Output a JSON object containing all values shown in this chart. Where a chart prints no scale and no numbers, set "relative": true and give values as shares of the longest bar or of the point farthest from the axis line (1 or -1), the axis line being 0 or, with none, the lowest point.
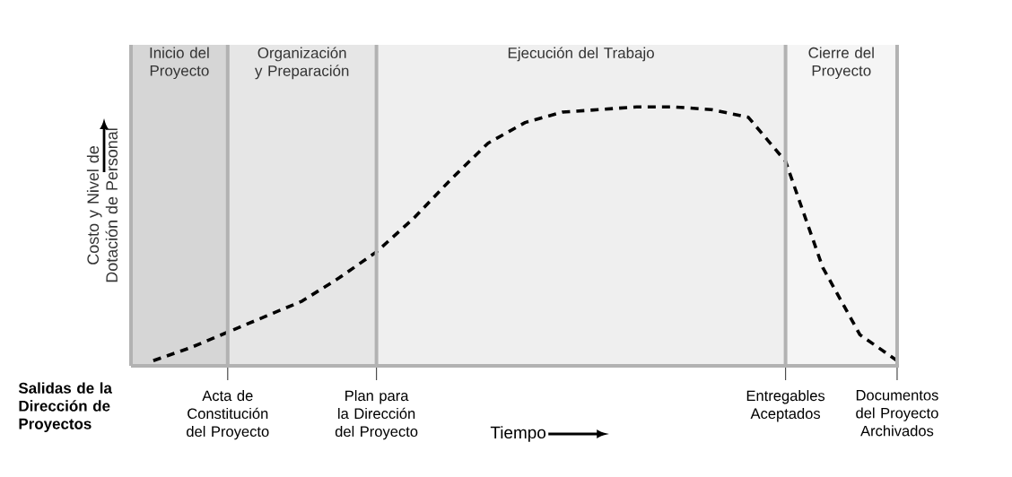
{
  "chart_data": {
    "type": "line",
    "relative": true,
    "xlabel": "Tiempo",
    "ylabel": "Costo y Nivel de Dotación de Personal",
    "annotations": [
      "Salidas de la Dirección de Proyectos",
      "Inicio del Proyecto"
    ],
    "marker": "none",
    "line_style": "dashed",
    "grid": "x",
    "categories": [
      null,
      null,
      "Acta de Constitución del Proyecto",
      null,
      null,
      null,
      "Plan para la Dirección del Proyecto",
      null,
      null,
      null,
      null,
      null,
      null,
      null,
      null,
      null,
      null,
      "Entregables Aceptados",
      null,
      null,
      "Documentos del Proyecto Archivados"
    ],
    "series": [
      {
        "color": "#000000",
        "values": [
          0.02,
          0.07,
          0.13,
          0.19,
          0.25,
          0.34,
          0.44,
          0.57,
          0.72,
          0.86,
          0.94,
          0.98,
          0.99,
          1.0,
          1.0,
          0.99,
          0.96,
          0.79,
          0.38,
          0.12,
          0.02
        ]
      }
    ],
    "bands": [
      {
        "axis": "x",
        "from": "Acta de Constitución del Proyecto",
        "to": "Plan para la Dirección del Proyecto",
        "label": "Organización y Preparación",
        "color": "#e6e6e6"
      },
      {
        "axis": "x",
        "from": "Plan para la Dirección del Proyecto",
        "to": "Entregables Aceptados",
        "label": "Ejecución del Trabajo",
        "color": "#efefef"
      },
      {
        "axis": "x",
        "from": "Entregables Aceptados",
        "to": "Documentos del Proyecto Archivados",
        "label": "Cierre del Proyecto",
        "color": "#f5f5f5"
      }
    ]
  }
}
